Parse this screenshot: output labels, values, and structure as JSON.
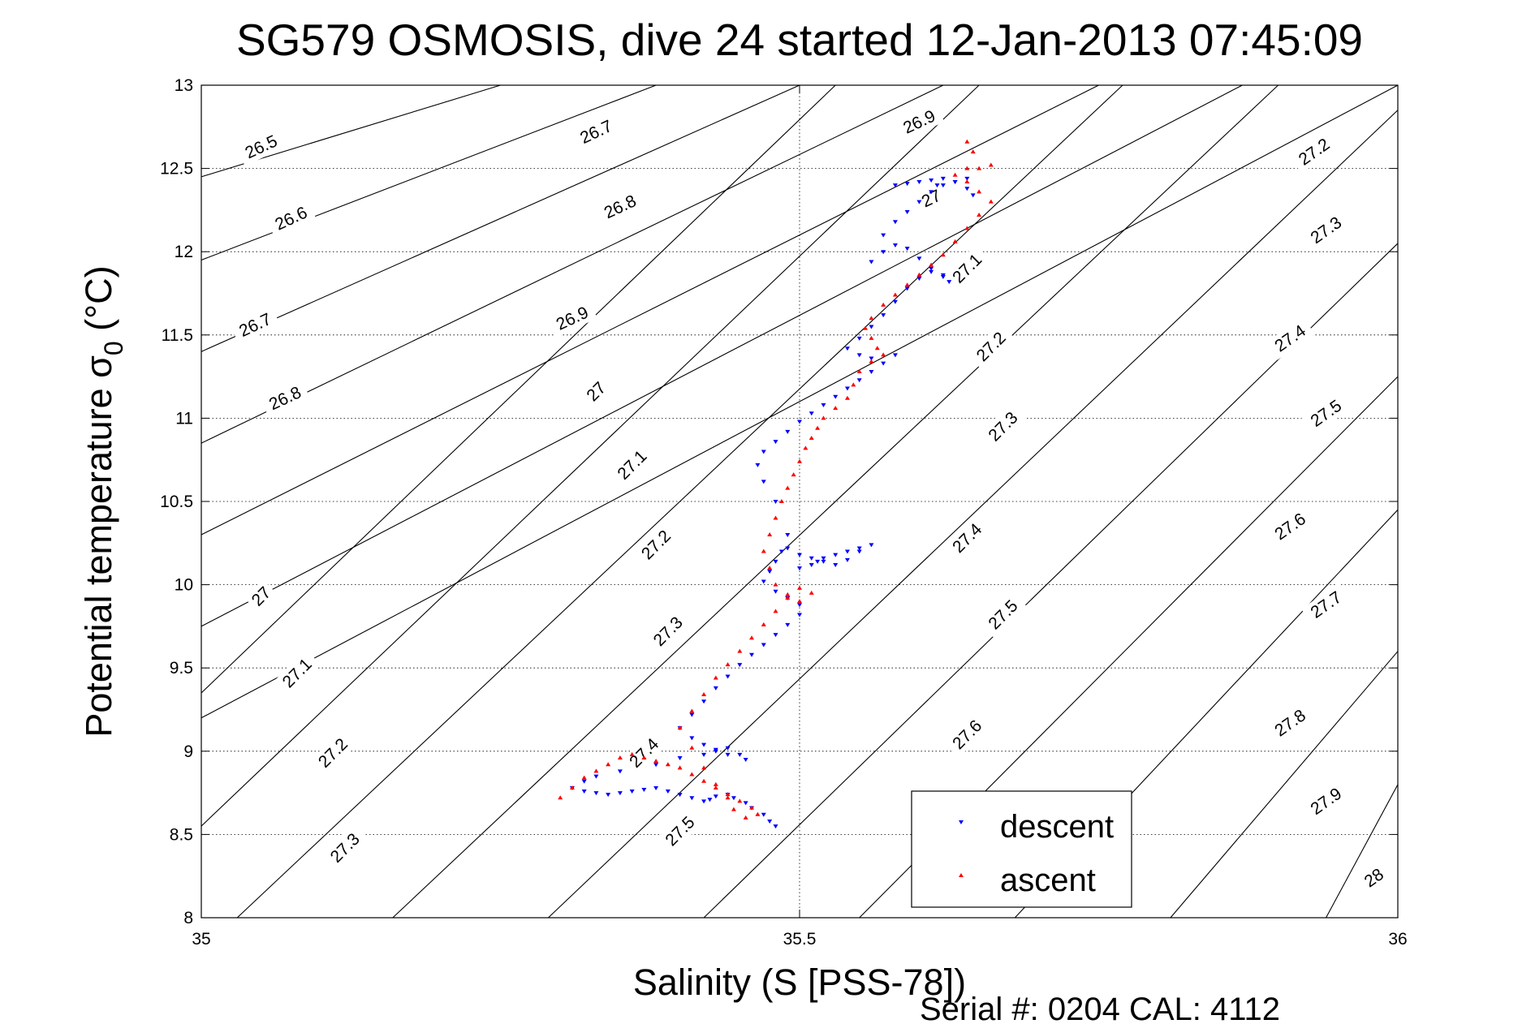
{
  "chart_data": {
    "type": "scatter",
    "title": "SG579 OSMOSIS, dive 24 started 12-Jan-2013 07:45:09",
    "xlabel": "Salinity (S [PSS-78])",
    "ylabel_main": "Potential temperature σ",
    "ylabel_sub": "0",
    "ylabel_unit": " (°C)",
    "xlim": [
      35,
      36
    ],
    "ylim": [
      8,
      13
    ],
    "x_ticks": [
      35,
      35.5,
      36
    ],
    "x_tick_labels": [
      "35",
      "35.5",
      "36"
    ],
    "y_ticks": [
      8,
      8.5,
      9,
      9.5,
      10,
      10.5,
      11,
      11.5,
      12,
      12.5,
      13
    ],
    "y_tick_labels": [
      "8",
      "8.5",
      "9",
      "9.5",
      "10",
      "10.5",
      "11",
      "11.5",
      "12",
      "12.5",
      "13"
    ],
    "grid": true,
    "legend_position": "bottom-right",
    "footer": "Serial #: 0204  CAL: 4112",
    "contour_lines": [
      {
        "x": [
          35.0,
          35.53
        ],
        "y": [
          9.35,
          13.0
        ]
      },
      {
        "x": [
          35.0,
          35.65
        ],
        "y": [
          8.55,
          13.0
        ]
      },
      {
        "x": [
          35.03,
          35.77
        ],
        "y": [
          8.0,
          13.0
        ]
      },
      {
        "x": [
          35.16,
          35.9
        ],
        "y": [
          8.0,
          13.0
        ]
      },
      {
        "x": [
          35.29,
          36.0
        ],
        "y": [
          8.0,
          12.85
        ]
      },
      {
        "x": [
          35.42,
          36.0
        ],
        "y": [
          8.0,
          12.05
        ]
      },
      {
        "x": [
          35.55,
          36.0
        ],
        "y": [
          8.0,
          11.25
        ]
      },
      {
        "x": [
          35.68,
          36.0
        ],
        "y": [
          8.0,
          10.45
        ]
      },
      {
        "x": [
          35.81,
          36.0
        ],
        "y": [
          8.0,
          9.6
        ]
      },
      {
        "x": [
          35.94,
          36.0
        ],
        "y": [
          8.0,
          8.8
        ]
      },
      {
        "x": [
          35.0,
          35.25
        ],
        "y": [
          12.45,
          13.0
        ]
      },
      {
        "x": [
          35.0,
          35.38
        ],
        "y": [
          11.95,
          13.0
        ]
      },
      {
        "x": [
          35.0,
          35.5
        ],
        "y": [
          11.4,
          13.0
        ]
      },
      {
        "x": [
          35.0,
          35.62
        ],
        "y": [
          10.85,
          13.0
        ]
      },
      {
        "x": [
          35.0,
          35.75
        ],
        "y": [
          10.3,
          13.0
        ]
      },
      {
        "x": [
          35.0,
          35.87
        ],
        "y": [
          9.75,
          13.0
        ]
      },
      {
        "x": [
          35.0,
          36.0
        ],
        "y": [
          9.2,
          13.0
        ]
      }
    ],
    "contour_labels": [
      {
        "text": "26.5",
        "x": 35.05,
        "y": 12.63,
        "angle": -25
      },
      {
        "text": "26.6",
        "x": 35.075,
        "y": 12.2,
        "angle": -25
      },
      {
        "text": "26.7",
        "x": 35.045,
        "y": 11.56,
        "angle": -25
      },
      {
        "text": "26.8",
        "x": 35.07,
        "y": 11.12,
        "angle": -25
      },
      {
        "text": "27",
        "x": 35.05,
        "y": 9.93,
        "angle": -45
      },
      {
        "text": "27.1",
        "x": 35.08,
        "y": 9.47,
        "angle": -45
      },
      {
        "text": "27.2",
        "x": 35.11,
        "y": 8.99,
        "angle": -45
      },
      {
        "text": "27.3",
        "x": 35.12,
        "y": 8.42,
        "angle": -45
      },
      {
        "text": "26.7",
        "x": 35.33,
        "y": 12.72,
        "angle": -25
      },
      {
        "text": "26.8",
        "x": 35.35,
        "y": 12.27,
        "angle": -25
      },
      {
        "text": "26.9",
        "x": 35.31,
        "y": 11.6,
        "angle": -25
      },
      {
        "text": "27",
        "x": 35.33,
        "y": 11.16,
        "angle": -45
      },
      {
        "text": "27.1",
        "x": 35.36,
        "y": 10.72,
        "angle": -45
      },
      {
        "text": "27.2",
        "x": 35.38,
        "y": 10.24,
        "angle": -45
      },
      {
        "text": "27.3",
        "x": 35.39,
        "y": 9.72,
        "angle": -45
      },
      {
        "text": "27.4",
        "x": 35.37,
        "y": 8.99,
        "angle": -45
      },
      {
        "text": "27.5",
        "x": 35.4,
        "y": 8.52,
        "angle": -45
      },
      {
        "text": "26.9",
        "x": 35.6,
        "y": 12.78,
        "angle": -25
      },
      {
        "text": "27",
        "x": 35.61,
        "y": 12.32,
        "angle": -25
      },
      {
        "text": "27.1",
        "x": 35.64,
        "y": 11.9,
        "angle": -45
      },
      {
        "text": "27.2",
        "x": 35.66,
        "y": 11.43,
        "angle": -45
      },
      {
        "text": "27.3",
        "x": 35.67,
        "y": 10.95,
        "angle": -45
      },
      {
        "text": "27.4",
        "x": 35.64,
        "y": 10.28,
        "angle": -45
      },
      {
        "text": "27.5",
        "x": 35.67,
        "y": 9.82,
        "angle": -45
      },
      {
        "text": "27.6",
        "x": 35.64,
        "y": 9.1,
        "angle": -45
      },
      {
        "text": "27.2",
        "x": 35.93,
        "y": 12.6,
        "angle": -35
      },
      {
        "text": "27.3",
        "x": 35.94,
        "y": 12.13,
        "angle": -35
      },
      {
        "text": "27.4",
        "x": 35.91,
        "y": 11.48,
        "angle": -35
      },
      {
        "text": "27.5",
        "x": 35.94,
        "y": 11.03,
        "angle": -35
      },
      {
        "text": "27.6",
        "x": 35.91,
        "y": 10.35,
        "angle": -35
      },
      {
        "text": "27.7",
        "x": 35.94,
        "y": 9.88,
        "angle": -35
      },
      {
        "text": "27.8",
        "x": 35.91,
        "y": 9.17,
        "angle": -35
      },
      {
        "text": "27.9",
        "x": 35.94,
        "y": 8.7,
        "angle": -35
      },
      {
        "text": "28",
        "x": 35.98,
        "y": 8.24,
        "angle": -35
      }
    ],
    "series": [
      {
        "name": "descent",
        "color": "#0000ff",
        "marker": "triangle-down",
        "x": [
          35.48,
          35.475,
          35.47,
          35.46,
          35.455,
          35.445,
          35.44,
          35.43,
          35.425,
          35.42,
          35.41,
          35.4,
          35.39,
          35.38,
          35.37,
          35.36,
          35.35,
          35.34,
          35.33,
          35.32,
          35.31,
          35.32,
          35.33,
          35.35,
          35.38,
          35.4,
          35.42,
          35.43,
          35.44,
          35.45,
          35.455,
          35.44,
          35.43,
          35.42,
          35.41,
          35.4,
          35.41,
          35.42,
          35.43,
          35.44,
          35.45,
          35.46,
          35.47,
          35.48,
          35.49,
          35.5,
          35.5,
          35.49,
          35.48,
          35.47,
          35.475,
          35.48,
          35.485,
          35.49,
          35.5,
          35.51,
          35.52,
          35.53,
          35.54,
          35.55,
          35.56,
          35.55,
          35.54,
          35.53,
          35.52,
          35.515,
          35.51,
          35.5,
          35.49,
          35.48,
          35.47,
          35.465,
          35.47,
          35.48,
          35.49,
          35.5,
          35.51,
          35.52,
          35.53,
          35.54,
          35.55,
          35.56,
          35.57,
          35.58,
          35.56,
          35.55,
          35.54,
          35.55,
          35.56,
          35.57,
          35.58,
          35.59,
          35.6,
          35.61,
          35.62,
          35.625,
          35.62,
          35.61,
          35.6,
          35.59,
          35.58,
          35.57,
          35.56,
          35.57,
          35.58,
          35.59,
          35.6,
          35.61,
          35.615,
          35.62,
          35.63,
          35.64,
          35.645,
          35.64,
          35.63,
          35.62,
          35.61,
          35.6,
          35.59,
          35.58
        ],
        "y": [
          8.55,
          8.58,
          8.62,
          8.66,
          8.69,
          8.72,
          8.74,
          8.73,
          8.71,
          8.7,
          8.72,
          8.74,
          8.76,
          8.78,
          8.77,
          8.76,
          8.75,
          8.74,
          8.75,
          8.76,
          8.78,
          8.82,
          8.85,
          8.88,
          8.92,
          8.96,
          8.98,
          9.0,
          9.02,
          8.98,
          8.95,
          8.98,
          9.01,
          9.04,
          9.08,
          9.14,
          9.22,
          9.3,
          9.38,
          9.45,
          9.52,
          9.58,
          9.64,
          9.7,
          9.76,
          9.82,
          9.88,
          9.92,
          9.96,
          10.02,
          10.08,
          10.14,
          10.2,
          10.22,
          10.18,
          10.16,
          10.14,
          10.12,
          10.15,
          10.2,
          10.24,
          10.22,
          10.2,
          10.18,
          10.16,
          10.14,
          10.12,
          10.1,
          10.3,
          10.5,
          10.62,
          10.72,
          10.8,
          10.86,
          10.92,
          10.98,
          11.03,
          11.08,
          11.13,
          11.18,
          11.23,
          11.28,
          11.33,
          11.38,
          11.36,
          11.38,
          11.42,
          11.48,
          11.55,
          11.62,
          11.7,
          11.78,
          11.84,
          11.88,
          11.86,
          11.82,
          11.85,
          11.9,
          11.96,
          12.02,
          12.04,
          12.0,
          11.94,
          12.1,
          12.18,
          12.24,
          12.3,
          12.36,
          12.4,
          12.44,
          12.42,
          12.38,
          12.34,
          12.44,
          12.42,
          12.4,
          12.43,
          12.42,
          12.41,
          12.4
        ]
      },
      {
        "name": "ascent",
        "color": "#ff0000",
        "marker": "triangle-up",
        "x": [
          35.3,
          35.31,
          35.32,
          35.33,
          35.34,
          35.35,
          35.36,
          35.37,
          35.38,
          35.39,
          35.4,
          35.41,
          35.42,
          35.43,
          35.44,
          35.45,
          35.46,
          35.465,
          35.455,
          35.445,
          35.44,
          35.43,
          35.42,
          35.41,
          35.4,
          35.41,
          35.42,
          35.43,
          35.44,
          35.45,
          35.46,
          35.47,
          35.48,
          35.49,
          35.5,
          35.51,
          35.5,
          35.49,
          35.48,
          35.475,
          35.47,
          35.475,
          35.48,
          35.485,
          35.49,
          35.495,
          35.5,
          35.505,
          35.51,
          35.515,
          35.52,
          35.53,
          35.54,
          35.545,
          35.55,
          35.56,
          35.57,
          35.565,
          35.56,
          35.555,
          35.56,
          35.57,
          35.58,
          35.59,
          35.6,
          35.61,
          35.62,
          35.63,
          35.64,
          35.65,
          35.66,
          35.65,
          35.64,
          35.63,
          35.64,
          35.65,
          35.66,
          35.645,
          35.64
        ],
        "y": [
          8.72,
          8.78,
          8.84,
          8.88,
          8.92,
          8.96,
          8.98,
          8.96,
          8.94,
          8.92,
          8.9,
          8.86,
          8.82,
          8.78,
          8.74,
          8.7,
          8.66,
          8.62,
          8.6,
          8.65,
          8.72,
          8.8,
          8.9,
          9.02,
          9.14,
          9.24,
          9.34,
          9.44,
          9.52,
          9.6,
          9.68,
          9.76,
          9.84,
          9.92,
          9.98,
          9.95,
          9.9,
          9.94,
          10.0,
          10.1,
          10.2,
          10.3,
          10.4,
          10.5,
          10.58,
          10.66,
          10.74,
          10.82,
          10.88,
          10.94,
          11.0,
          11.06,
          11.12,
          11.2,
          11.28,
          11.34,
          11.38,
          11.42,
          11.48,
          11.54,
          11.6,
          11.68,
          11.74,
          11.8,
          11.86,
          11.92,
          11.98,
          12.06,
          12.14,
          12.22,
          12.3,
          12.36,
          12.42,
          12.46,
          12.5,
          12.5,
          12.52,
          12.6,
          12.66
        ]
      }
    ]
  }
}
